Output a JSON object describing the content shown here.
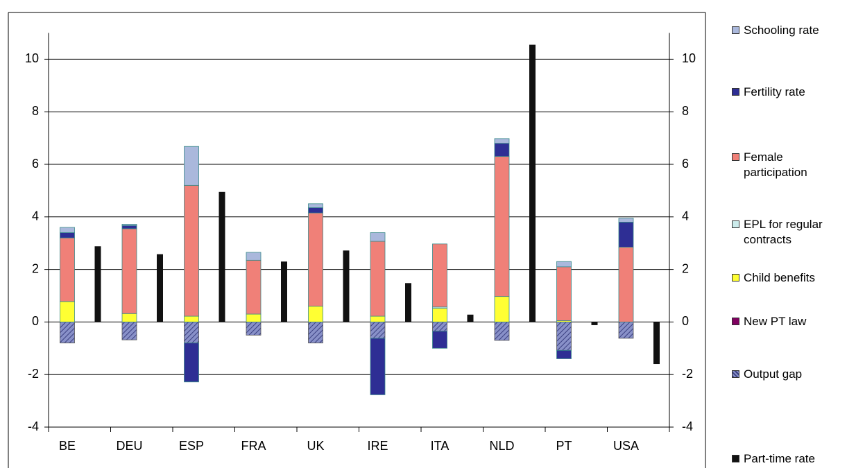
{
  "chart_data": {
    "type": "bar",
    "stacked": true,
    "categories": [
      "BE",
      "DEU",
      "ESP",
      "FRA",
      "UK",
      "IRE",
      "ITA",
      "NLD",
      "PT",
      "USA"
    ],
    "series": [
      {
        "name": "Schooling rate",
        "color": "#aab8dc",
        "values": [
          0.2,
          0.05,
          1.48,
          0.3,
          0.15,
          0.33,
          0,
          0.18,
          0.2,
          0.15
        ]
      },
      {
        "name": "Fertility rate",
        "color": "#2e2e94",
        "values": [
          0.2,
          0.12,
          -1.48,
          0,
          0.2,
          -2.15,
          -0.65,
          0.5,
          -0.32,
          0.95
        ]
      },
      {
        "name": "Female participation",
        "color": "#f08078",
        "values": [
          2.42,
          3.23,
          4.98,
          2.05,
          3.55,
          2.85,
          2.4,
          5.33,
          2.05,
          2.85
        ]
      },
      {
        "name": "EPL for regular contracts",
        "color": "#ccecec",
        "values": [
          0,
          0,
          0,
          0,
          0,
          0,
          0.05,
          0,
          0,
          0
        ]
      },
      {
        "name": "Child benefits",
        "color": "#ffff33",
        "values": [
          0.78,
          0.32,
          0.22,
          0.3,
          0.6,
          0.22,
          0.52,
          0.97,
          0.05,
          0
        ]
      },
      {
        "name": "New PT law",
        "color": "#800060",
        "values": [
          0,
          0,
          0,
          0,
          0,
          0,
          0,
          0,
          0,
          0
        ]
      },
      {
        "name": "Output gap",
        "color": "#8890c8",
        "hatch": true,
        "values": [
          -0.8,
          -0.68,
          -0.8,
          -0.5,
          -0.8,
          -0.62,
          -0.35,
          -0.7,
          -1.08,
          -0.62
        ]
      },
      {
        "name": "Part-time rate",
        "color": "#111111",
        "stack": false,
        "values": [
          2.88,
          2.58,
          4.95,
          2.3,
          2.72,
          1.48,
          0.28,
          10.55,
          -0.12,
          -1.6
        ]
      }
    ],
    "ylim": [
      -4,
      11
    ],
    "yticks": [
      -4,
      -2,
      0,
      2,
      4,
      6,
      8,
      10
    ],
    "y2lim": [
      -4,
      11
    ],
    "y2ticks": [
      -4,
      -2,
      0,
      2,
      4,
      6,
      8,
      10
    ],
    "grid": true,
    "legend": "right"
  }
}
